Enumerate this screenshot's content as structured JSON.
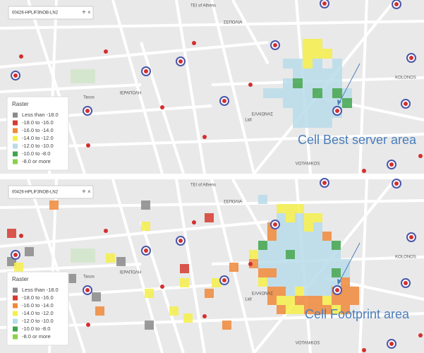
{
  "panels": [
    {
      "search": "00426-HPLIF3NOB-LN2",
      "legend": {
        "title": "Raster",
        "items": [
          {
            "label": "Less than -18.0",
            "color": "#8a8a8a"
          },
          {
            "label": "-18.0 to -16.0",
            "color": "#d63a2f"
          },
          {
            "label": "-16.0 to -14.0",
            "color": "#f0883a"
          },
          {
            "label": "-14.0 to -12.0",
            "color": "#f4ef4a"
          },
          {
            "label": "-12.0 to -10.0",
            "color": "#b9dcea"
          },
          {
            "label": "-10.0 to -8.0",
            "color": "#3fa34d"
          },
          {
            "label": "-8.0 or more",
            "color": "#8cd04a"
          }
        ]
      },
      "annotation": "Cell Best server area",
      "places": [
        "TEI of Athens",
        "ΙΕΡΑΠΟΛΗ",
        "ΣΕΠΟΛΙΑ",
        "KOLONOS",
        "ΕΛΑΙΩΝΑΣ",
        "VOTANIKOS",
        "Lidl",
        "Tasos"
      ]
    },
    {
      "search": "00426-HPLIF3NOB-LN2",
      "legend": {
        "title": "Raster",
        "items": [
          {
            "label": "Less than -18.0",
            "color": "#8a8a8a"
          },
          {
            "label": "-18.0 to -16.0",
            "color": "#d63a2f"
          },
          {
            "label": "-16.0 to -14.0",
            "color": "#f0883a"
          },
          {
            "label": "-14.0 to -12.0",
            "color": "#f4ef4a"
          },
          {
            "label": "-12.0 to -10.0",
            "color": "#b9dcea"
          },
          {
            "label": "-10.0 to -8.0",
            "color": "#3fa34d"
          },
          {
            "label": "-8.0 or more",
            "color": "#8cd04a"
          }
        ]
      },
      "annotation": "Cell Footprint area",
      "places": [
        "TEI of Athens",
        "ΙΕΡΑΠΟΛΗ",
        "ΣΕΠΟΛΙΑ",
        "KOLONOS",
        "ΕΛΑΙΩΝΑΣ",
        "VOTANIKOS",
        "Lidl",
        "Tasos"
      ]
    }
  ]
}
